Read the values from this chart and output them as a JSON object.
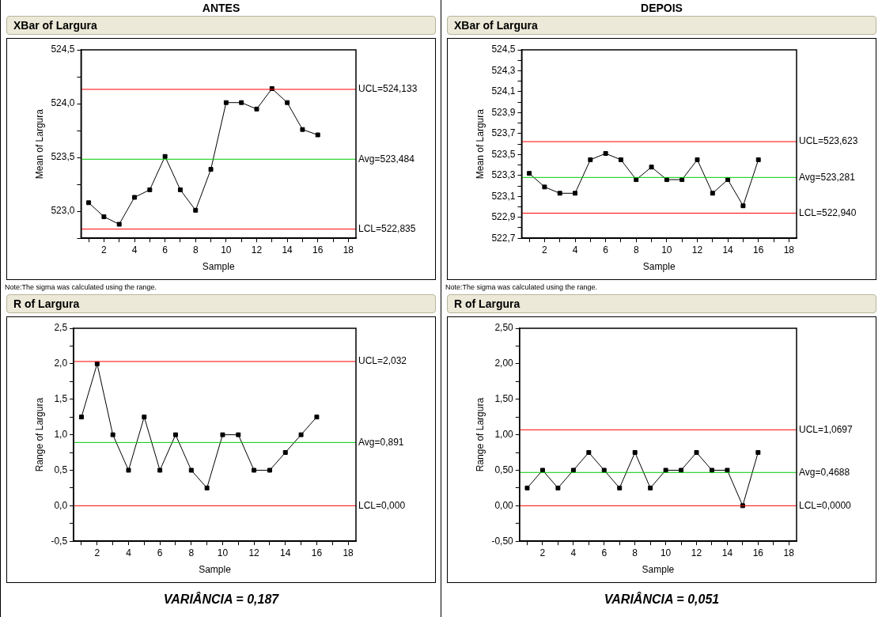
{
  "chart_data": [
    {
      "type": "line",
      "subtitle": "ANTES",
      "title": "XBar of Largura",
      "xlabel": "Sample",
      "ylabel": "Mean of Largura",
      "marker": "square",
      "x": [
        1,
        2,
        3,
        4,
        5,
        6,
        7,
        8,
        9,
        10,
        11,
        12,
        13,
        14,
        15,
        16
      ],
      "series": [
        {
          "color": "#000000",
          "values": [
            523.08,
            522.95,
            522.88,
            523.13,
            523.2,
            523.51,
            523.2,
            523.01,
            523.39,
            524.01,
            524.01,
            523.95,
            524.14,
            524.01,
            523.76,
            523.71
          ]
        }
      ],
      "xlim": [
        0.5,
        18.5
      ],
      "xticks": [
        {
          "value": 1,
          "label": null
        },
        2,
        {
          "value": 3,
          "label": null
        },
        4,
        {
          "value": 5,
          "label": null
        },
        6,
        {
          "value": 7,
          "label": null
        },
        8,
        {
          "value": 9,
          "label": null
        },
        10,
        {
          "value": 11,
          "label": null
        },
        12,
        {
          "value": 13,
          "label": null
        },
        14,
        {
          "value": 15,
          "label": null
        },
        16,
        {
          "value": 17,
          "label": null
        },
        18
      ],
      "ylim": [
        522.75,
        524.5
      ],
      "yticks": [
        {
          "value": 522.75,
          "label": null
        },
        {
          "value": 523,
          "label": "523,0"
        },
        {
          "value": 523.25,
          "label": null
        },
        {
          "value": 523.5,
          "label": "523,5"
        },
        {
          "value": 523.75,
          "label": null
        },
        {
          "value": 524,
          "label": "524,0"
        },
        {
          "value": 524.25,
          "label": null
        },
        {
          "value": 524.5,
          "label": "524,5"
        }
      ],
      "ref_lines": [
        {
          "axis": "y",
          "value": 524.133,
          "label": "UCL=524,133",
          "color": "#ff0000"
        },
        {
          "axis": "y",
          "value": 523.484,
          "label": "Avg=523,484",
          "color": "#00cc00"
        },
        {
          "axis": "y",
          "value": 522.835,
          "label": "LCL=522,835",
          "color": "#ff0000"
        }
      ],
      "annotations": [
        "Note:The sigma was calculated using the range."
      ]
    },
    {
      "type": "line",
      "subtitle": "DEPOIS",
      "title": "XBar of Largura",
      "xlabel": "Sample",
      "ylabel": "Mean of Largura",
      "marker": "square",
      "x": [
        1,
        2,
        3,
        4,
        5,
        6,
        7,
        8,
        9,
        10,
        11,
        12,
        13,
        14,
        15,
        16
      ],
      "series": [
        {
          "color": "#000000",
          "values": [
            523.32,
            523.19,
            523.13,
            523.13,
            523.45,
            523.51,
            523.45,
            523.26,
            523.38,
            523.26,
            523.26,
            523.45,
            523.13,
            523.26,
            523.01,
            523.45
          ]
        }
      ],
      "xlim": [
        0.5,
        18.5
      ],
      "xticks": [
        {
          "value": 1,
          "label": null
        },
        2,
        {
          "value": 3,
          "label": null
        },
        4,
        {
          "value": 5,
          "label": null
        },
        6,
        {
          "value": 7,
          "label": null
        },
        8,
        {
          "value": 9,
          "label": null
        },
        10,
        {
          "value": 11,
          "label": null
        },
        12,
        {
          "value": 13,
          "label": null
        },
        14,
        {
          "value": 15,
          "label": null
        },
        16,
        {
          "value": 17,
          "label": null
        },
        18
      ],
      "ylim": [
        522.7,
        524.5
      ],
      "yticks": [
        {
          "value": 522.7,
          "label": "522,7"
        },
        {
          "value": 522.8,
          "label": null
        },
        {
          "value": 522.9,
          "label": "522,9"
        },
        {
          "value": 523,
          "label": null
        },
        {
          "value": 523.1,
          "label": "523,1"
        },
        {
          "value": 523.2,
          "label": null
        },
        {
          "value": 523.3,
          "label": "523,3"
        },
        {
          "value": 523.4,
          "label": null
        },
        {
          "value": 523.5,
          "label": "523,5"
        },
        {
          "value": 523.6,
          "label": null
        },
        {
          "value": 523.7,
          "label": "523,7"
        },
        {
          "value": 523.8,
          "label": null
        },
        {
          "value": 523.9,
          "label": "523,9"
        },
        {
          "value": 524,
          "label": null
        },
        {
          "value": 524.1,
          "label": "524,1"
        },
        {
          "value": 524.2,
          "label": null
        },
        {
          "value": 524.3,
          "label": "524,3"
        },
        {
          "value": 524.4,
          "label": null
        },
        {
          "value": 524.5,
          "label": "524,5"
        }
      ],
      "ref_lines": [
        {
          "axis": "y",
          "value": 523.623,
          "label": "UCL=523,623",
          "color": "#ff0000"
        },
        {
          "axis": "y",
          "value": 523.281,
          "label": "Avg=523,281",
          "color": "#00cc00"
        },
        {
          "axis": "y",
          "value": 522.94,
          "label": "LCL=522,940",
          "color": "#ff0000"
        }
      ],
      "annotations": [
        "Note:The sigma was calculated using the range."
      ]
    },
    {
      "type": "line",
      "title": "R of Largura",
      "xlabel": "Sample",
      "ylabel": "Range of Largura",
      "marker": "square",
      "x": [
        1,
        2,
        3,
        4,
        5,
        6,
        7,
        8,
        9,
        10,
        11,
        12,
        13,
        14,
        15,
        16
      ],
      "series": [
        {
          "color": "#000000",
          "values": [
            1.25,
            2.0,
            1.0,
            0.5,
            1.25,
            0.5,
            1.0,
            0.5,
            0.25,
            1.0,
            1.0,
            0.5,
            0.5,
            0.75,
            1.0,
            1.25
          ]
        }
      ],
      "xlim": [
        0.5,
        18.5
      ],
      "xticks": [
        {
          "value": 1,
          "label": null
        },
        2,
        {
          "value": 3,
          "label": null
        },
        4,
        {
          "value": 5,
          "label": null
        },
        6,
        {
          "value": 7,
          "label": null
        },
        8,
        {
          "value": 9,
          "label": null
        },
        10,
        {
          "value": 11,
          "label": null
        },
        12,
        {
          "value": 13,
          "label": null
        },
        14,
        {
          "value": 15,
          "label": null
        },
        16,
        {
          "value": 17,
          "label": null
        },
        18
      ],
      "ylim": [
        -0.5,
        2.5
      ],
      "yticks": [
        {
          "value": -0.5,
          "label": "-0,5"
        },
        {
          "value": -0.25,
          "label": null
        },
        {
          "value": 0,
          "label": "0,0"
        },
        {
          "value": 0.25,
          "label": null
        },
        {
          "value": 0.5,
          "label": "0,5"
        },
        {
          "value": 0.75,
          "label": null
        },
        {
          "value": 1,
          "label": "1,0"
        },
        {
          "value": 1.25,
          "label": null
        },
        {
          "value": 1.5,
          "label": "1,5"
        },
        {
          "value": 1.75,
          "label": null
        },
        {
          "value": 2,
          "label": "2,0"
        },
        {
          "value": 2.25,
          "label": null
        },
        {
          "value": 2.5,
          "label": "2,5"
        }
      ],
      "ref_lines": [
        {
          "axis": "y",
          "value": 2.032,
          "label": "UCL=2,032",
          "color": "#ff0000"
        },
        {
          "axis": "y",
          "value": 0.891,
          "label": "Avg=0,891",
          "color": "#00cc00"
        },
        {
          "axis": "y",
          "value": 0,
          "label": "LCL=0,000",
          "color": "#ff0000"
        }
      ],
      "annotations": [
        "VARIÂNCIA = 0,187"
      ]
    },
    {
      "type": "line",
      "title": "R of Largura",
      "xlabel": "Sample",
      "ylabel": "Range of Largura",
      "marker": "square",
      "x": [
        1,
        2,
        3,
        4,
        5,
        6,
        7,
        8,
        9,
        10,
        11,
        12,
        13,
        14,
        15,
        16
      ],
      "series": [
        {
          "color": "#000000",
          "values": [
            0.25,
            0.5,
            0.25,
            0.5,
            0.75,
            0.5,
            0.25,
            0.75,
            0.25,
            0.5,
            0.5,
            0.75,
            0.5,
            0.5,
            0.0,
            0.75
          ]
        }
      ],
      "xlim": [
        0.5,
        18.5
      ],
      "xticks": [
        {
          "value": 1,
          "label": null
        },
        2,
        {
          "value": 3,
          "label": null
        },
        4,
        {
          "value": 5,
          "label": null
        },
        6,
        {
          "value": 7,
          "label": null
        },
        8,
        {
          "value": 9,
          "label": null
        },
        10,
        {
          "value": 11,
          "label": null
        },
        12,
        {
          "value": 13,
          "label": null
        },
        14,
        {
          "value": 15,
          "label": null
        },
        16,
        {
          "value": 17,
          "label": null
        },
        18
      ],
      "ylim": [
        -0.5,
        2.5
      ],
      "yticks": [
        {
          "value": -0.5,
          "label": "-0,50"
        },
        {
          "value": -0.25,
          "label": null
        },
        {
          "value": 0,
          "label": "0,00"
        },
        {
          "value": 0.25,
          "label": null
        },
        {
          "value": 0.5,
          "label": "0,50"
        },
        {
          "value": 0.75,
          "label": null
        },
        {
          "value": 1,
          "label": "1,00"
        },
        {
          "value": 1.25,
          "label": null
        },
        {
          "value": 1.5,
          "label": "1,50"
        },
        {
          "value": 1.75,
          "label": null
        },
        {
          "value": 2,
          "label": "2,00"
        },
        {
          "value": 2.25,
          "label": null
        },
        {
          "value": 2.5,
          "label": "2,50"
        }
      ],
      "ref_lines": [
        {
          "axis": "y",
          "value": 1.0697,
          "label": "UCL=1,0697",
          "color": "#ff0000"
        },
        {
          "axis": "y",
          "value": 0.4688,
          "label": "Avg=0,4688",
          "color": "#00cc00"
        },
        {
          "axis": "y",
          "value": 0,
          "label": "LCL=0,0000",
          "color": "#ff0000"
        }
      ],
      "annotations": [
        "VARIÂNCIA = 0,051"
      ]
    }
  ]
}
